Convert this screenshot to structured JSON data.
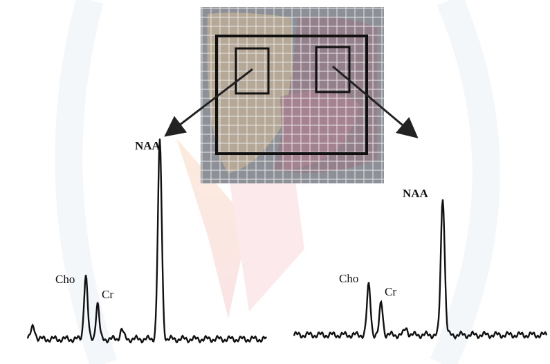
{
  "spectra": [
    {
      "labels": [
        "NAA",
        "Cho",
        "Cr"
      ]
    },
    {
      "labels": [
        "NAA",
        "Cho",
        "Cr"
      ]
    }
  ]
}
